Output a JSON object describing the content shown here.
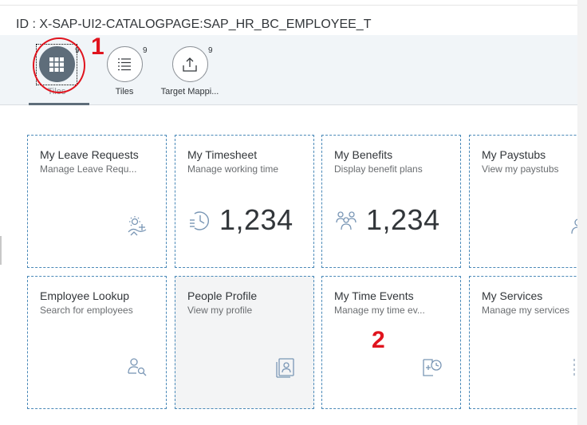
{
  "header": {
    "title": "ID : X-SAP-UI2-CATALOGPAGE:SAP_HR_BC_EMPLOYEE_T"
  },
  "tabs": [
    {
      "label": "Tiles",
      "count": "9",
      "icon": "grid-icon"
    },
    {
      "label": "Tiles",
      "count": "9",
      "icon": "list-icon"
    },
    {
      "label": "Target Mappi...",
      "count": "9",
      "icon": "share-icon"
    }
  ],
  "annotations": {
    "one": "1",
    "two": "2"
  },
  "tiles": [
    {
      "title": "My Leave Requests",
      "subtitle": "Manage Leave Requ...",
      "icon": "leave-request-icon"
    },
    {
      "title": "My Timesheet",
      "subtitle": "Manage working time",
      "kpi": "1,234",
      "icon": "timesheet-icon"
    },
    {
      "title": "My Benefits",
      "subtitle": "Display benefit plans",
      "kpi": "1,234",
      "icon": "benefits-icon"
    },
    {
      "title": "My Paystubs",
      "subtitle": "View my paystubs",
      "icon": "paystub-icon"
    },
    {
      "title": "Employee Lookup",
      "subtitle": "Search for employees",
      "icon": "employee-lookup-icon"
    },
    {
      "title": "People Profile",
      "subtitle": "View my profile",
      "icon": "profile-icon"
    },
    {
      "title": "My Time Events",
      "subtitle": "Manage my time ev...",
      "icon": "time-events-icon"
    },
    {
      "title": "My Services",
      "subtitle": "Manage my services",
      "icon": "services-icon"
    }
  ],
  "colors": {
    "accent": "#5e6d7a",
    "tile_border": "#4a89b8",
    "icon": "#7996b5",
    "annotation": "#e0141e"
  }
}
